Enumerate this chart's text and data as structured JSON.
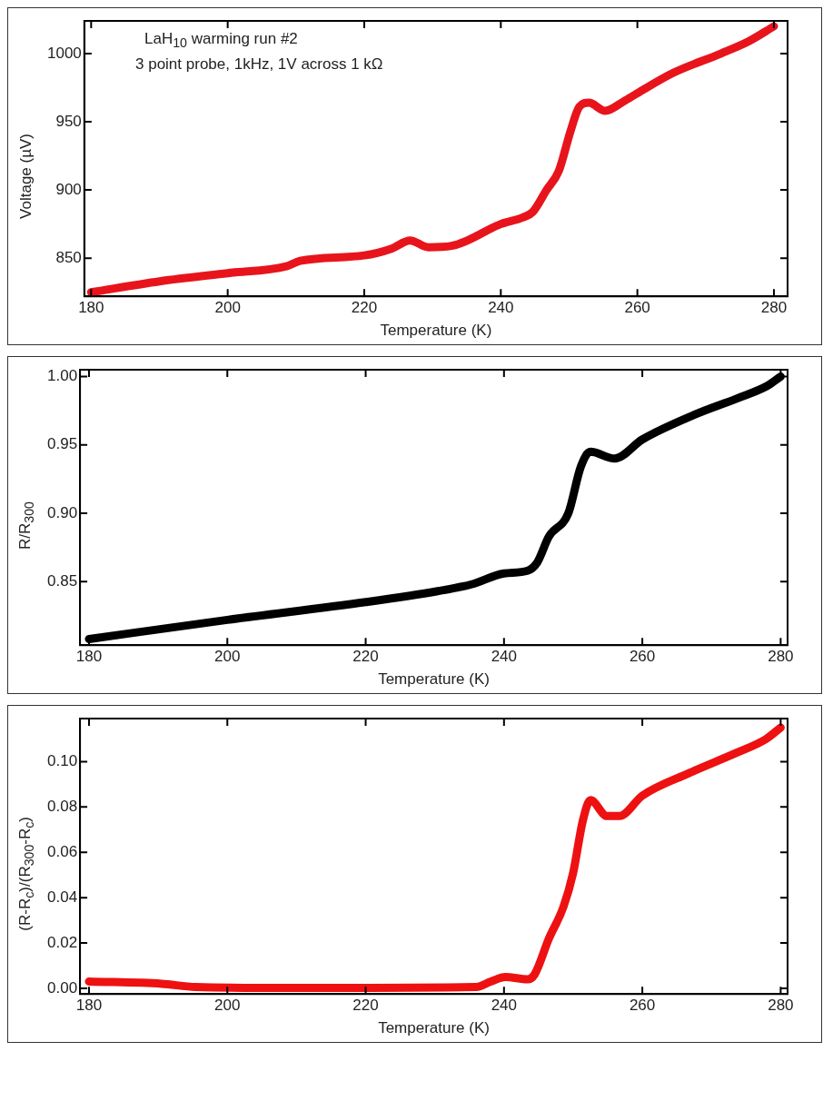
{
  "chart_data": [
    {
      "type": "line",
      "xlabel": "Temperature (K)",
      "ylabel": "Voltage (µV)",
      "annotations": [
        "LaH$_{10}$ warming run #2",
        "3 point probe, 1kHz, 1V across 1 kΩ"
      ],
      "x": [
        180,
        190,
        200,
        208.6,
        210.6,
        220,
        224,
        226.7,
        229.4,
        232.8,
        240,
        243.3,
        244.7,
        246.7,
        248.5,
        250.2,
        251.5,
        252.9,
        255.3,
        258,
        260,
        265.3,
        272.2,
        276.3,
        280
      ],
      "series": [
        {
          "color": "#e8141c",
          "values": [
            825,
            833,
            839,
            844,
            848,
            852,
            857,
            863,
            858,
            859,
            875,
            880,
            884,
            900,
            914,
            943,
            961,
            964,
            958,
            965,
            971,
            986,
            1000,
            1009,
            1020
          ]
        }
      ],
      "xlim": [
        179,
        282
      ],
      "xticks": [
        180,
        200,
        220,
        240,
        260,
        280
      ],
      "ylim": [
        822,
        1024
      ],
      "yticks": [
        850,
        900,
        950,
        1000
      ],
      "grid": false,
      "legend": false,
      "marker": "none",
      "line_style": "solid"
    },
    {
      "type": "line",
      "xlabel": "Temperature (K)",
      "ylabel": "R/R$_{300}$",
      "x": [
        180,
        200,
        220,
        230.4,
        235.3,
        240,
        243.4,
        244.8,
        246.5,
        249.3,
        251.1,
        252.5,
        256,
        260,
        267.5,
        273.7,
        278,
        280
      ],
      "series": [
        {
          "color": "#000000",
          "values": [
            0.808,
            0.822,
            0.835,
            0.843,
            0.848,
            0.856,
            0.858,
            0.864,
            0.883,
            0.9,
            0.934,
            0.945,
            0.94,
            0.954,
            0.972,
            0.984,
            0.993,
            1.0
          ]
        }
      ],
      "xlim": [
        178.7,
        281
      ],
      "xticks": [
        180,
        200,
        220,
        240,
        260,
        280
      ],
      "ylim": [
        0.8035,
        1.005
      ],
      "yticks": [
        {
          "value": 0.85,
          "label": "0.85"
        },
        {
          "value": 0.9,
          "label": "0.90"
        },
        {
          "value": 0.95,
          "label": "0.95"
        },
        {
          "value": 1,
          "label": "1.00"
        }
      ],
      "grid": false,
      "legend": false,
      "marker": "none",
      "line_style": "solid"
    },
    {
      "type": "line",
      "xlabel": "Temperature (K)",
      "ylabel": "(R-R$_{c}$)/(R$_{300}$-R$_{c}$)",
      "x": [
        180,
        190.5,
        195.4,
        209.4,
        236,
        238.1,
        240.2,
        243.4,
        244.4,
        246.5,
        248.6,
        250,
        251.4,
        252.5,
        254.9,
        256.7,
        260,
        266.8,
        273.7,
        277.9,
        280
      ],
      "series": [
        {
          "color": "#ee1111",
          "values": [
            0.003,
            0.002,
            0.0006,
            0.0002,
            0.0006,
            0.003,
            0.005,
            0.004,
            0.006,
            0.022,
            0.036,
            0.051,
            0.074,
            0.083,
            0.076,
            0.076,
            0.085,
            0.095,
            0.104,
            0.11,
            0.115
          ]
        }
      ],
      "xlim": [
        178.7,
        281
      ],
      "xticks": [
        180,
        200,
        220,
        240,
        260,
        280
      ],
      "ylim": [
        -0.0025,
        0.119
      ],
      "yticks": [
        {
          "value": 0,
          "label": "0.00"
        },
        {
          "value": 0.02,
          "label": "0.02"
        },
        {
          "value": 0.04,
          "label": "0.04"
        },
        {
          "value": 0.06,
          "label": "0.06"
        },
        {
          "value": 0.08,
          "label": "0.08"
        },
        {
          "value": 0.1,
          "label": "0.10"
        }
      ],
      "grid": false,
      "legend": false,
      "marker": "none",
      "line_style": "solid"
    }
  ]
}
